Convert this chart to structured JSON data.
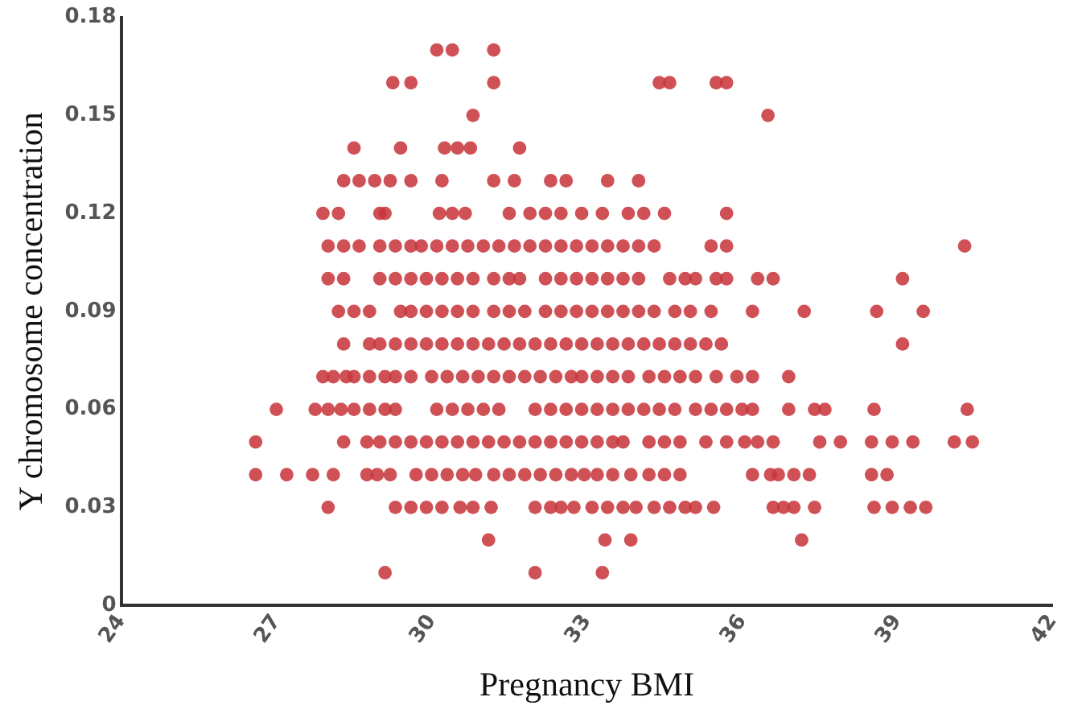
{
  "chart_data": {
    "type": "scatter",
    "xlabel": "Pregnancy BMI",
    "ylabel": "Y chromosome concentration",
    "xlim": [
      24,
      42
    ],
    "xticks": [
      24,
      27,
      30,
      33,
      36,
      39,
      42
    ],
    "ylim": [
      0,
      0.18
    ],
    "yticks": [
      0,
      0.03,
      0.06,
      0.09,
      0.12,
      0.15,
      0.18
    ],
    "grid": false,
    "legend": false,
    "marker": "circle",
    "series": [
      {
        "color": "#c8363c",
        "x": [
          30.1,
          30.4,
          31.2,
          29.25,
          29.6,
          31.2,
          34.4,
          34.6,
          35.5,
          35.7,
          30.8,
          36.5,
          28.5,
          29.4,
          30.25,
          30.5,
          30.75,
          31.7,
          28.3,
          28.6,
          28.9,
          29.2,
          29.6,
          30.2,
          31.2,
          31.6,
          32.3,
          32.6,
          33.4,
          34.0,
          27.9,
          28.2,
          29.0,
          29.1,
          30.15,
          30.4,
          30.65,
          31.5,
          31.9,
          32.2,
          32.5,
          32.9,
          33.3,
          33.8,
          34.1,
          34.5,
          35.7,
          28.0,
          28.3,
          28.6,
          29.0,
          29.3,
          29.6,
          29.8,
          30.1,
          30.4,
          30.7,
          31.0,
          31.3,
          31.6,
          31.9,
          32.2,
          32.5,
          32.8,
          33.1,
          33.4,
          33.7,
          34.0,
          34.3,
          35.4,
          35.7,
          40.3,
          28.0,
          28.3,
          29.0,
          29.3,
          29.6,
          29.9,
          30.2,
          30.5,
          30.8,
          31.2,
          31.5,
          31.7,
          32.2,
          32.5,
          32.8,
          33.1,
          33.4,
          33.7,
          34.0,
          34.6,
          34.9,
          35.1,
          35.5,
          35.7,
          36.3,
          36.6,
          39.1,
          28.2,
          28.5,
          28.8,
          29.4,
          29.6,
          29.9,
          30.2,
          30.5,
          30.8,
          31.2,
          31.5,
          31.8,
          32.2,
          32.5,
          32.8,
          33.1,
          33.4,
          33.7,
          34.0,
          34.3,
          34.7,
          35.0,
          35.4,
          36.2,
          37.2,
          38.6,
          39.5,
          28.3,
          28.8,
          29.0,
          29.3,
          29.6,
          29.9,
          30.2,
          30.5,
          30.8,
          31.1,
          31.4,
          31.7,
          32.0,
          32.3,
          32.6,
          32.9,
          33.2,
          33.5,
          33.8,
          34.1,
          34.4,
          34.7,
          35.0,
          35.3,
          35.6,
          39.1,
          27.9,
          28.1,
          28.35,
          28.5,
          28.8,
          29.1,
          29.3,
          29.6,
          30.0,
          30.3,
          30.6,
          30.9,
          31.2,
          31.5,
          31.8,
          32.1,
          32.4,
          32.7,
          32.9,
          33.2,
          33.5,
          33.8,
          34.2,
          34.5,
          34.8,
          35.1,
          35.5,
          35.9,
          36.2,
          36.9,
          27.0,
          27.75,
          28.0,
          28.25,
          28.5,
          28.8,
          29.1,
          29.3,
          30.1,
          30.4,
          30.7,
          31.0,
          31.3,
          32.0,
          32.3,
          32.6,
          32.9,
          33.2,
          33.5,
          33.8,
          34.1,
          34.4,
          34.7,
          35.1,
          35.4,
          35.7,
          36.0,
          36.2,
          36.9,
          37.4,
          37.6,
          38.55,
          40.35,
          26.6,
          28.3,
          28.75,
          29.0,
          29.3,
          29.6,
          29.9,
          30.2,
          30.5,
          30.8,
          31.1,
          31.4,
          31.7,
          32.0,
          32.3,
          32.6,
          32.9,
          33.2,
          33.5,
          33.7,
          34.2,
          34.5,
          34.8,
          35.3,
          35.7,
          36.05,
          36.3,
          36.6,
          37.5,
          37.9,
          38.5,
          38.9,
          39.3,
          40.1,
          40.45,
          26.6,
          27.2,
          27.7,
          28.1,
          28.75,
          28.95,
          29.2,
          29.7,
          30.0,
          30.3,
          30.6,
          30.85,
          31.2,
          31.5,
          31.8,
          32.1,
          32.4,
          32.7,
          32.95,
          33.2,
          33.5,
          33.85,
          34.2,
          34.5,
          34.8,
          36.2,
          36.55,
          36.7,
          37.0,
          37.3,
          38.5,
          38.8,
          28.0,
          29.3,
          29.6,
          29.9,
          30.2,
          30.55,
          30.8,
          31.15,
          32.0,
          32.3,
          32.5,
          32.75,
          33.1,
          33.4,
          33.7,
          33.95,
          34.3,
          34.6,
          34.9,
          35.1,
          35.45,
          36.6,
          36.8,
          37.0,
          37.4,
          38.55,
          38.9,
          39.25,
          39.55,
          31.1,
          33.35,
          33.85,
          37.15,
          29.1,
          32.0,
          33.3
        ],
        "values": [
          0.17,
          0.17,
          0.17,
          0.16,
          0.16,
          0.16,
          0.16,
          0.16,
          0.16,
          0.16,
          0.15,
          0.15,
          0.14,
          0.14,
          0.14,
          0.14,
          0.14,
          0.14,
          0.13,
          0.13,
          0.13,
          0.13,
          0.13,
          0.13,
          0.13,
          0.13,
          0.13,
          0.13,
          0.13,
          0.13,
          0.12,
          0.12,
          0.12,
          0.12,
          0.12,
          0.12,
          0.12,
          0.12,
          0.12,
          0.12,
          0.12,
          0.12,
          0.12,
          0.12,
          0.12,
          0.12,
          0.12,
          0.11,
          0.11,
          0.11,
          0.11,
          0.11,
          0.11,
          0.11,
          0.11,
          0.11,
          0.11,
          0.11,
          0.11,
          0.11,
          0.11,
          0.11,
          0.11,
          0.11,
          0.11,
          0.11,
          0.11,
          0.11,
          0.11,
          0.11,
          0.11,
          0.11,
          0.1,
          0.1,
          0.1,
          0.1,
          0.1,
          0.1,
          0.1,
          0.1,
          0.1,
          0.1,
          0.1,
          0.1,
          0.1,
          0.1,
          0.1,
          0.1,
          0.1,
          0.1,
          0.1,
          0.1,
          0.1,
          0.1,
          0.1,
          0.1,
          0.1,
          0.1,
          0.1,
          0.09,
          0.09,
          0.09,
          0.09,
          0.09,
          0.09,
          0.09,
          0.09,
          0.09,
          0.09,
          0.09,
          0.09,
          0.09,
          0.09,
          0.09,
          0.09,
          0.09,
          0.09,
          0.09,
          0.09,
          0.09,
          0.09,
          0.09,
          0.09,
          0.09,
          0.09,
          0.09,
          0.08,
          0.08,
          0.08,
          0.08,
          0.08,
          0.08,
          0.08,
          0.08,
          0.08,
          0.08,
          0.08,
          0.08,
          0.08,
          0.08,
          0.08,
          0.08,
          0.08,
          0.08,
          0.08,
          0.08,
          0.08,
          0.08,
          0.08,
          0.08,
          0.08,
          0.08,
          0.07,
          0.07,
          0.07,
          0.07,
          0.07,
          0.07,
          0.07,
          0.07,
          0.07,
          0.07,
          0.07,
          0.07,
          0.07,
          0.07,
          0.07,
          0.07,
          0.07,
          0.07,
          0.07,
          0.07,
          0.07,
          0.07,
          0.07,
          0.07,
          0.07,
          0.07,
          0.07,
          0.07,
          0.07,
          0.07,
          0.06,
          0.06,
          0.06,
          0.06,
          0.06,
          0.06,
          0.06,
          0.06,
          0.06,
          0.06,
          0.06,
          0.06,
          0.06,
          0.06,
          0.06,
          0.06,
          0.06,
          0.06,
          0.06,
          0.06,
          0.06,
          0.06,
          0.06,
          0.06,
          0.06,
          0.06,
          0.06,
          0.06,
          0.06,
          0.06,
          0.06,
          0.06,
          0.06,
          0.05,
          0.05,
          0.05,
          0.05,
          0.05,
          0.05,
          0.05,
          0.05,
          0.05,
          0.05,
          0.05,
          0.05,
          0.05,
          0.05,
          0.05,
          0.05,
          0.05,
          0.05,
          0.05,
          0.05,
          0.05,
          0.05,
          0.05,
          0.05,
          0.05,
          0.05,
          0.05,
          0.05,
          0.05,
          0.05,
          0.05,
          0.05,
          0.05,
          0.05,
          0.05,
          0.04,
          0.04,
          0.04,
          0.04,
          0.04,
          0.04,
          0.04,
          0.04,
          0.04,
          0.04,
          0.04,
          0.04,
          0.04,
          0.04,
          0.04,
          0.04,
          0.04,
          0.04,
          0.04,
          0.04,
          0.04,
          0.04,
          0.04,
          0.04,
          0.04,
          0.04,
          0.04,
          0.04,
          0.04,
          0.04,
          0.04,
          0.04,
          0.03,
          0.03,
          0.03,
          0.03,
          0.03,
          0.03,
          0.03,
          0.03,
          0.03,
          0.03,
          0.03,
          0.03,
          0.03,
          0.03,
          0.03,
          0.03,
          0.03,
          0.03,
          0.03,
          0.03,
          0.03,
          0.03,
          0.03,
          0.03,
          0.03,
          0.03,
          0.03,
          0.03,
          0.03,
          0.02,
          0.02,
          0.02,
          0.02,
          0.01,
          0.01,
          0.01
        ]
      }
    ]
  }
}
